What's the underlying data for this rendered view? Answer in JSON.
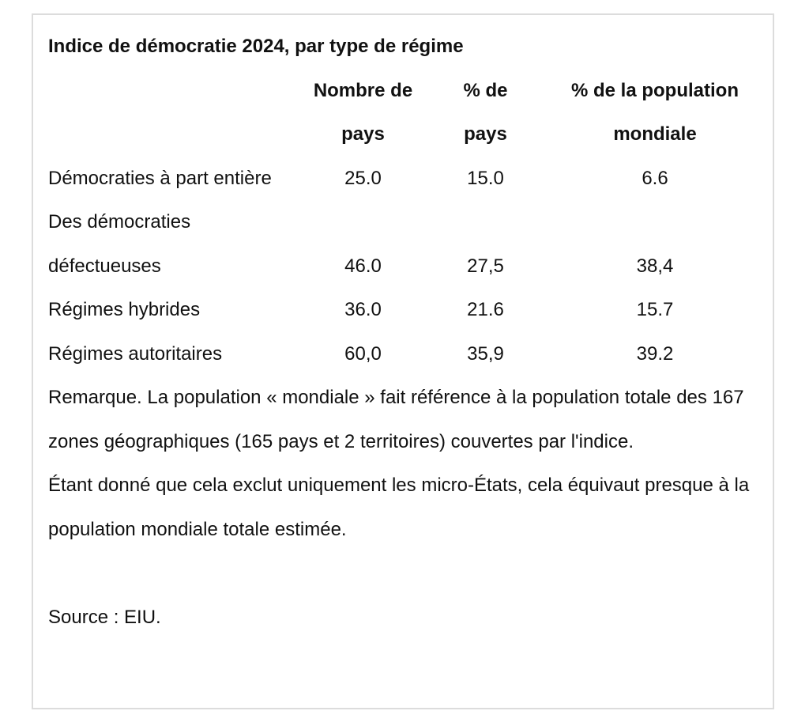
{
  "title": "Indice de démocratie 2024, par type de régime",
  "headers": [
    "",
    "Nombre de pays",
    "% de pays",
    "% de la population mondiale"
  ],
  "rows": [
    {
      "label": "Démocraties à part entière",
      "count": "25.0",
      "pct_countries": "15.0",
      "pct_population": "6.6"
    },
    {
      "label": "Des démocraties défectueuses",
      "count": "46.0",
      "pct_countries": "27,5",
      "pct_population": "38,4"
    },
    {
      "label": "Régimes hybrides",
      "count": "36.0",
      "pct_countries": "21.6",
      "pct_population": "15.7"
    },
    {
      "label": "Régimes autoritaires",
      "count": "60,0",
      "pct_countries": "35,9",
      "pct_population": "39.2"
    }
  ],
  "note1": "Remarque. La population « mondiale » fait référence à la population totale des 167 zones géographiques (165 pays et 2 territoires) couvertes par l'indice.",
  "note2": "Étant donné que cela exclut uniquement les micro-États, cela équivaut presque à la population mondiale totale estimée.",
  "source": "Source : EIU."
}
